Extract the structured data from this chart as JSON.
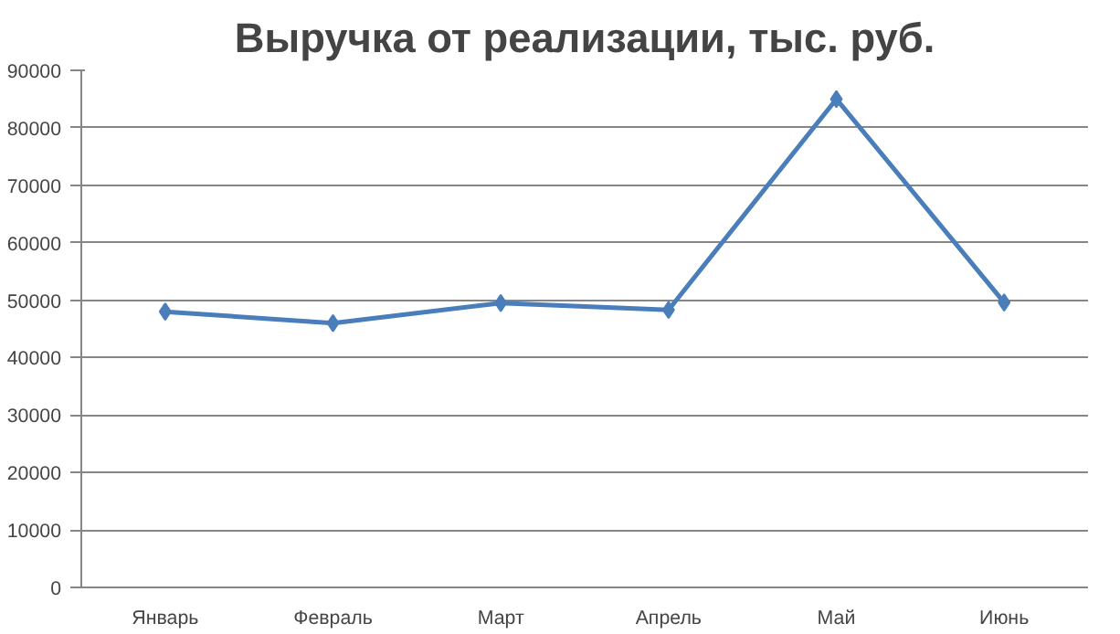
{
  "chart_data": {
    "type": "line",
    "title": "Выручка от реализации, тыс. руб.",
    "categories": [
      "Январь",
      "Февраль",
      "Март",
      "Апрель",
      "Май",
      "Июнь"
    ],
    "series": [
      {
        "color": "#4a7ebb",
        "values": [
          48000,
          46000,
          49500,
          48300,
          85000,
          49600
        ]
      }
    ],
    "ylim": [
      0,
      90000
    ],
    "yticks": [
      0,
      10000,
      20000,
      30000,
      40000,
      50000,
      60000,
      70000,
      80000,
      90000
    ],
    "grid": "y",
    "marker": "diamond",
    "line_style": "solid"
  }
}
